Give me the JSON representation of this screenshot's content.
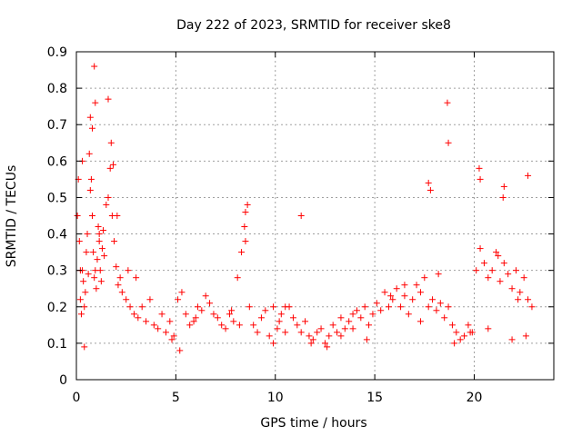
{
  "chart_data": {
    "type": "scatter",
    "title": "Day 222 of 2023, SRMTID for receiver ske8",
    "xlabel": "GPS time / hours",
    "ylabel": "SRMTID / TECUs",
    "xlim": [
      0,
      24
    ],
    "ylim": [
      0,
      0.9
    ],
    "xticks": [
      0,
      5,
      10,
      15,
      20
    ],
    "xtick_labels": [
      "0",
      "5",
      "10",
      "15",
      "20"
    ],
    "yticks": [
      0,
      0.1,
      0.2,
      0.3,
      0.4,
      0.5,
      0.6,
      0.7,
      0.8,
      0.9
    ],
    "ytick_labels": [
      "0",
      "0.1",
      "0.2",
      "0.3",
      "0.4",
      "0.5",
      "0.6",
      "0.7",
      "0.8",
      "0.9"
    ],
    "grid": true,
    "marker": "+",
    "series": [
      {
        "name": "ske8",
        "color": "#ff0000",
        "x": [
          0.05,
          0.1,
          0.15,
          0.2,
          0.25,
          0.3,
          0.35,
          0.4,
          0.45,
          0.5,
          0.55,
          0.6,
          0.65,
          0.7,
          0.75,
          0.8,
          0.85,
          0.9,
          0.95,
          1.0,
          1.05,
          1.1,
          1.15,
          1.2,
          1.25,
          1.3,
          1.35,
          1.4,
          1.5,
          1.6,
          1.7,
          1.8,
          1.9,
          2.0,
          2.1,
          2.2,
          2.3,
          2.5,
          2.7,
          2.9,
          3.1,
          3.3,
          3.5,
          3.7,
          3.9,
          4.1,
          4.3,
          4.5,
          4.7,
          4.9,
          5.1,
          5.3,
          5.5,
          5.7,
          5.9,
          6.1,
          6.3,
          6.5,
          6.7,
          6.9,
          7.1,
          7.3,
          7.5,
          7.7,
          7.9,
          8.1,
          8.3,
          8.5,
          8.7,
          8.9,
          9.1,
          9.3,
          9.5,
          9.7,
          9.9,
          10.1,
          10.3,
          10.5,
          10.7,
          10.9,
          11.1,
          11.3,
          11.5,
          11.7,
          11.9,
          12.1,
          12.3,
          12.5,
          12.7,
          12.9,
          13.1,
          13.3,
          13.5,
          13.7,
          13.9,
          14.1,
          14.3,
          14.5,
          14.7,
          14.9,
          15.1,
          15.3,
          15.5,
          15.7,
          15.9,
          16.1,
          16.3,
          16.5,
          16.7,
          16.9,
          17.1,
          17.3,
          17.5,
          17.7,
          17.9,
          18.1,
          18.3,
          18.5,
          18.7,
          18.9,
          19.1,
          19.3,
          19.5,
          19.7,
          19.9,
          20.1,
          20.3,
          20.5,
          20.7,
          20.9,
          21.1,
          21.3,
          21.5,
          21.7,
          21.9,
          22.1,
          22.3,
          22.5,
          22.7,
          22.9,
          0.9,
          0.95,
          1.6,
          1.75,
          1.85,
          0.8,
          0.3,
          2.05,
          8.5,
          8.45,
          8.6,
          11.3,
          18.65,
          18.7,
          17.7,
          17.8,
          20.25,
          20.3,
          21.45,
          21.5,
          22.7,
          0.2,
          0.7,
          1.15,
          3.0,
          6.0,
          9.9,
          10.2,
          12.6,
          13.9,
          16.5,
          19.0,
          21.2,
          22.2,
          2.6,
          4.8,
          7.8,
          10.5,
          13.3,
          15.8,
          18.2,
          20.7,
          22.6,
          0.4,
          5.2,
          8.2,
          11.8,
          14.6,
          17.3,
          19.8,
          21.9
        ],
        "y": [
          0.45,
          0.55,
          0.38,
          0.22,
          0.18,
          0.3,
          0.27,
          0.2,
          0.24,
          0.35,
          0.4,
          0.29,
          0.62,
          0.72,
          0.55,
          0.45,
          0.35,
          0.28,
          0.3,
          0.25,
          0.33,
          0.42,
          0.38,
          0.3,
          0.27,
          0.36,
          0.41,
          0.34,
          0.48,
          0.5,
          0.58,
          0.45,
          0.38,
          0.31,
          0.26,
          0.28,
          0.24,
          0.22,
          0.2,
          0.18,
          0.17,
          0.2,
          0.16,
          0.22,
          0.15,
          0.14,
          0.18,
          0.13,
          0.16,
          0.12,
          0.22,
          0.24,
          0.18,
          0.15,
          0.16,
          0.2,
          0.19,
          0.23,
          0.21,
          0.18,
          0.17,
          0.15,
          0.14,
          0.18,
          0.16,
          0.28,
          0.35,
          0.38,
          0.2,
          0.15,
          0.13,
          0.17,
          0.19,
          0.12,
          0.1,
          0.14,
          0.18,
          0.13,
          0.2,
          0.17,
          0.15,
          0.13,
          0.16,
          0.12,
          0.11,
          0.13,
          0.14,
          0.1,
          0.12,
          0.15,
          0.13,
          0.17,
          0.14,
          0.16,
          0.18,
          0.19,
          0.17,
          0.2,
          0.15,
          0.18,
          0.21,
          0.19,
          0.24,
          0.2,
          0.22,
          0.25,
          0.2,
          0.23,
          0.18,
          0.22,
          0.26,
          0.24,
          0.28,
          0.2,
          0.22,
          0.19,
          0.21,
          0.17,
          0.2,
          0.15,
          0.13,
          0.11,
          0.12,
          0.15,
          0.13,
          0.3,
          0.36,
          0.32,
          0.28,
          0.3,
          0.35,
          0.27,
          0.32,
          0.29,
          0.25,
          0.3,
          0.24,
          0.28,
          0.22,
          0.2,
          0.86,
          0.76,
          0.77,
          0.65,
          0.59,
          0.69,
          0.6,
          0.45,
          0.46,
          0.42,
          0.48,
          0.45,
          0.76,
          0.65,
          0.54,
          0.52,
          0.58,
          0.55,
          0.5,
          0.53,
          0.56,
          0.3,
          0.52,
          0.4,
          0.28,
          0.17,
          0.2,
          0.16,
          0.09,
          0.14,
          0.26,
          0.1,
          0.34,
          0.22,
          0.3,
          0.11,
          0.19,
          0.2,
          0.12,
          0.23,
          0.29,
          0.14,
          0.12,
          0.09,
          0.08,
          0.15,
          0.1,
          0.11,
          0.16,
          0.13,
          0.11
        ]
      }
    ]
  }
}
